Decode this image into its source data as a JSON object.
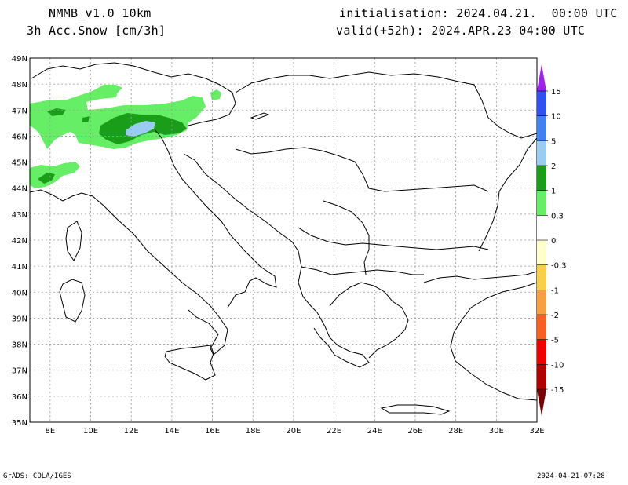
{
  "header": {
    "model": "NMMB_v1.0_10km",
    "field": "3h Acc.Snow [cm/3h]",
    "init": "initialisation: 2024.04.21.  00:00 UTC",
    "valid": "valid(+52h): 2024.APR.23 04:00 UTC"
  },
  "footer": {
    "left": "GrADS: COLA/IGES",
    "right": "2024-04-21-07:28"
  },
  "map": {
    "lat_labels": [
      "49N",
      "48N",
      "47N",
      "46N",
      "45N",
      "44N",
      "43N",
      "42N",
      "41N",
      "40N",
      "39N",
      "38N",
      "37N",
      "36N",
      "35N"
    ],
    "lon_labels": [
      "8E",
      "10E",
      "12E",
      "14E",
      "16E",
      "18E",
      "20E",
      "22E",
      "24E",
      "26E",
      "28E",
      "30E",
      "32E"
    ],
    "lat_range": [
      35,
      49
    ],
    "lon_range": [
      7,
      32
    ],
    "grid": "dotted",
    "snow_color_light": "#66ee66",
    "snow_color_mid": "#1a9e1a",
    "snow_color_heavy": "#99ccf0"
  },
  "colorbar": {
    "labels": [
      "15",
      "10",
      "5",
      "2",
      "1",
      "0.3",
      "0",
      "-0.3",
      "-1",
      "-2",
      "-5",
      "-10",
      "-15"
    ],
    "colors": [
      "#a020f0",
      "#3050f0",
      "#4080f0",
      "#99ccf0",
      "#1a9e1a",
      "#66ee66",
      "#ffffff",
      "#ffffcc",
      "#f8d048",
      "#f8a040",
      "#f86020",
      "#f00000",
      "#b00000",
      "#780000"
    ]
  }
}
